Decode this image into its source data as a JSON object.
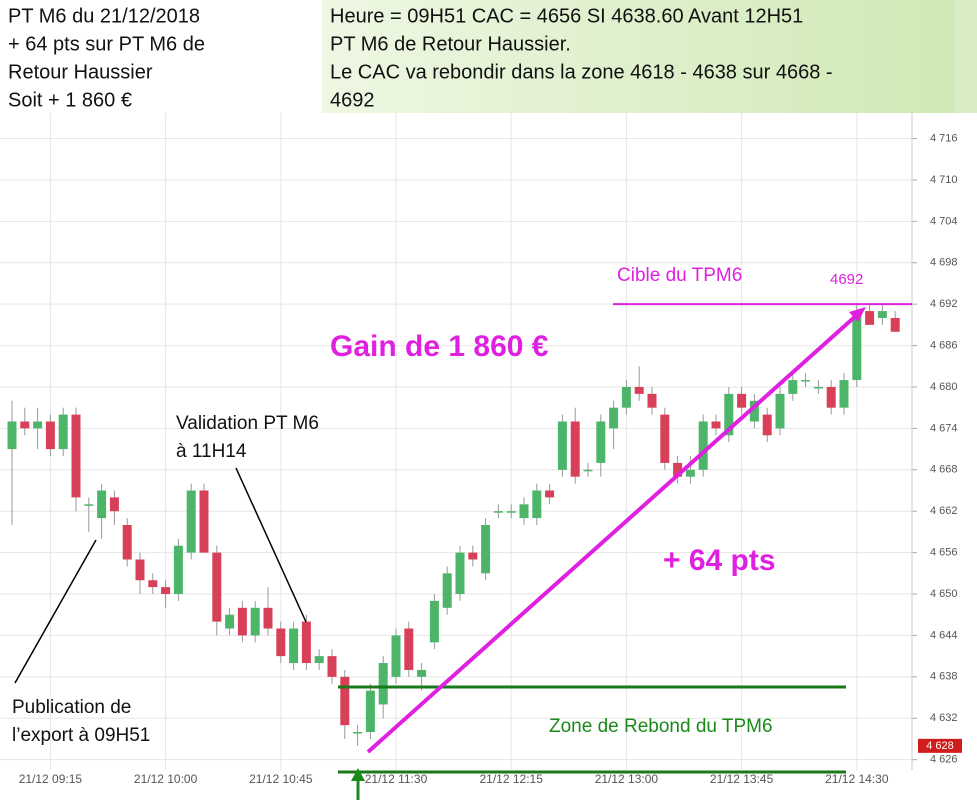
{
  "chart_data": {
    "type": "candlestick",
    "categories": [
      null,
      null,
      null,
      "21/12 09:15",
      null,
      null,
      null,
      null,
      null,
      null,
      null,
      null,
      "21/12 10:00",
      null,
      null,
      null,
      null,
      null,
      null,
      null,
      null,
      "21/12 10:45",
      null,
      null,
      null,
      null,
      null,
      null,
      null,
      null,
      "21/12 11:30",
      null,
      null,
      null,
      null,
      null,
      null,
      null,
      null,
      "21/12 12:15",
      null,
      null,
      null,
      null,
      null,
      null,
      null,
      null,
      "21/12 13:00",
      null,
      null,
      null,
      null,
      null,
      null,
      null,
      null,
      "21/12 13:45",
      null,
      null,
      null,
      null,
      null,
      null,
      null,
      null,
      "21/12 14:30",
      null,
      null,
      null
    ],
    "open": [
      4671,
      4675,
      4674,
      4675,
      4671,
      4676,
      4663,
      4661,
      4664,
      4660,
      4655,
      4652,
      4651,
      4650,
      4656,
      4665,
      4656,
      4645,
      4648,
      4644,
      4648,
      4645,
      4640,
      4646,
      4640,
      4641,
      4638,
      4630,
      4630,
      4634,
      4638,
      4645,
      4638,
      4643,
      4648,
      4650,
      4656,
      4653,
      4662,
      4662,
      4661,
      4661,
      4665,
      4668,
      4675,
      4668,
      4669,
      4674,
      4677,
      4680,
      4679,
      4676,
      4669,
      4667,
      4668,
      4675,
      4673,
      4679,
      4675,
      4676,
      4674,
      4679,
      4681,
      4680,
      4680,
      4677,
      4681,
      4691,
      4690,
      4690
    ],
    "high": [
      4678,
      4677,
      4677,
      4676,
      4677,
      4677,
      4664,
      4666,
      4665,
      4661,
      4656,
      4653,
      4652,
      4658,
      4666,
      4666,
      4657,
      4648,
      4649,
      4649,
      4651,
      4646,
      4646,
      4647,
      4642,
      4642,
      4639,
      4631,
      4637,
      4641,
      4645,
      4646,
      4640,
      4650,
      4654,
      4657,
      4657,
      4661,
      4663,
      4663,
      4664,
      4666,
      4666,
      4676,
      4677,
      4669,
      4676,
      4678,
      4681,
      4683,
      4680,
      4677,
      4670,
      4670,
      4676,
      4676,
      4680,
      4680,
      4679,
      4677,
      4680,
      4682,
      4682,
      4681,
      4681,
      4682,
      4692,
      4692,
      4692,
      4691
    ],
    "low": [
      4660,
      4673,
      4671,
      4670,
      4670,
      4662,
      4659,
      4658,
      4660,
      4654,
      4650,
      4650,
      4648,
      4649,
      4655,
      4656,
      4644,
      4644,
      4643,
      4643,
      4644,
      4640,
      4639,
      4639,
      4639,
      4637,
      4629,
      4628,
      4629,
      4632,
      4637,
      4638,
      4636,
      4642,
      4647,
      4649,
      4654,
      4652,
      4661,
      4661,
      4660,
      4660,
      4663,
      4667,
      4666,
      4667,
      4667,
      4671,
      4676,
      4678,
      4676,
      4668,
      4666,
      4666,
      4667,
      4673,
      4672,
      4676,
      4674,
      4672,
      4673,
      4678,
      4680,
      4679,
      4676,
      4676,
      4680,
      4689,
      4689,
      4688
    ],
    "close": [
      4675,
      4674,
      4675,
      4671,
      4676,
      4664,
      4663,
      4665,
      4662,
      4655,
      4652,
      4651,
      4650,
      4657,
      4665,
      4656,
      4646,
      4647,
      4644,
      4648,
      4645,
      4641,
      4645,
      4640,
      4641,
      4638,
      4631,
      4630,
      4636,
      4640,
      4644,
      4639,
      4639,
      4649,
      4653,
      4656,
      4655,
      4660,
      4662,
      4662,
      4663,
      4665,
      4664,
      4675,
      4667,
      4668,
      4675,
      4677,
      4680,
      4679,
      4677,
      4669,
      4667,
      4668,
      4675,
      4674,
      4679,
      4677,
      4678,
      4673,
      4679,
      4681,
      4681,
      4680,
      4677,
      4681,
      4691,
      4689,
      4691,
      4688
    ],
    "up_color": "#4cb56a",
    "down_color": "#d8405a",
    "ylim": [
      4624.5,
      4719.7
    ],
    "yticks": [
      {
        "value": 4626,
        "label": "4 626"
      },
      {
        "value": 4632,
        "label": "4 632"
      },
      {
        "value": 4638,
        "label": "4 638"
      },
      {
        "value": 4644,
        "label": "4 644"
      },
      {
        "value": 4650,
        "label": "4 650"
      },
      {
        "value": 4656,
        "label": "4 656"
      },
      {
        "value": 4662,
        "label": "4 662"
      },
      {
        "value": 4668,
        "label": "4 668"
      },
      {
        "value": 4674,
        "label": "4 674"
      },
      {
        "value": 4680,
        "label": "4 680"
      },
      {
        "value": 4686,
        "label": "4 686"
      },
      {
        "value": 4692,
        "label": "4 692"
      },
      {
        "value": 4698,
        "label": "4 698"
      },
      {
        "value": 4704,
        "label": "4 704"
      },
      {
        "value": 4710,
        "label": "4 710"
      },
      {
        "value": 4716,
        "label": "4 716"
      }
    ],
    "grid": true,
    "current_price": {
      "value": 4628,
      "label": "4 628"
    },
    "target": {
      "value": 4692,
      "label": "4692"
    },
    "annotations": {
      "header_left": [
        "PT M6  du 21/12/2018",
        "+ 64 pts sur PT M6 de",
        "Retour Haussier",
        "Soit + 1 860 €"
      ],
      "header_right": [
        "Heure = 09H51 CAC = 4656 SI 4638.60 Avant 12H51",
        "PT M6 de Retour Haussier.",
        "Le CAC va rebondir dans la zone 4618 - 4638 sur 4668 -",
        "4692"
      ],
      "target_name": "Cible du TPM6",
      "gain": "Gain de 1 860 €",
      "points": "+ 64 pts",
      "zone": "Zone de Rebond du TPM6",
      "validation": [
        "Validation PT M6",
        "à 11H14"
      ],
      "publication": [
        "Publication de",
        "l’export à 09H51"
      ]
    }
  }
}
